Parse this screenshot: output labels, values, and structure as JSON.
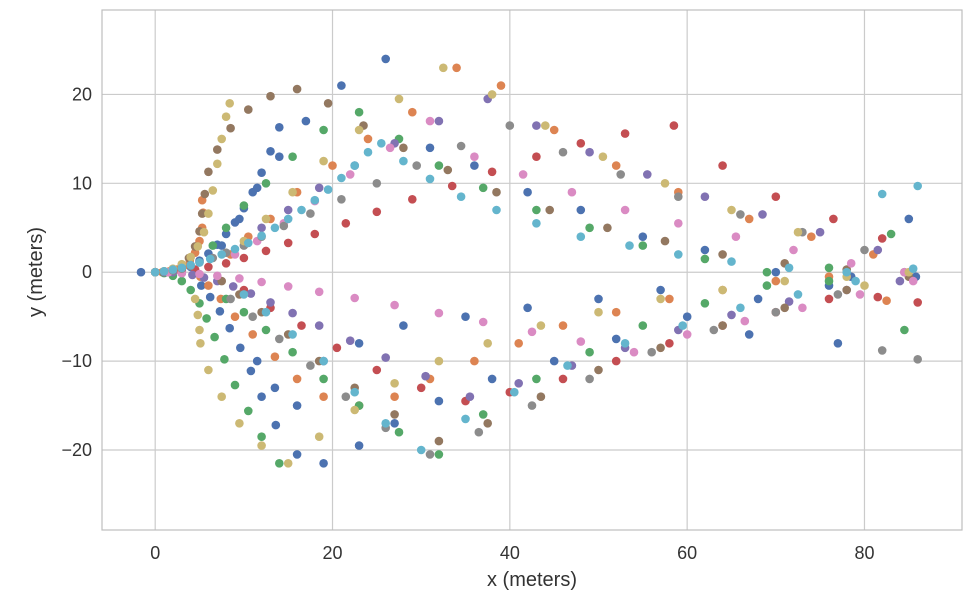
{
  "chart_data": {
    "type": "scatter",
    "title": "",
    "xlabel": "x (meters)",
    "ylabel": "y (meters)",
    "xlim": [
      -6,
      91
    ],
    "ylim": [
      -29,
      29.5
    ],
    "xticks": [
      0,
      20,
      40,
      60,
      80
    ],
    "yticks": [
      -20,
      -10,
      0,
      10,
      20
    ],
    "xtick_labels": [
      "0",
      "20",
      "40",
      "60",
      "80"
    ],
    "ytick_labels": [
      "−20",
      "−10",
      "0",
      "10",
      "20"
    ],
    "grid": true,
    "legend": "none",
    "background": "#ffffff",
    "grid_color": "#cbcbcb",
    "palette": [
      "#4c72b0",
      "#dd8452",
      "#55a868",
      "#c44e52",
      "#8172b2",
      "#937860",
      "#da8bc3",
      "#8c8c8c",
      "#ccb974",
      "#64b5cd"
    ],
    "series": [
      {
        "color": "#4c72b0",
        "x": [
          -1.6,
          0,
          1,
          2,
          3,
          4,
          5,
          6,
          7,
          8,
          9,
          10,
          11,
          12,
          13,
          14,
          5.2,
          6.2,
          7.3,
          8.4,
          9.6,
          10.8,
          12,
          13.6,
          16,
          19,
          23,
          27,
          32,
          38,
          45,
          52,
          60,
          68,
          76,
          85.8,
          7.5,
          9.5,
          11.5,
          14,
          17,
          21,
          26,
          31,
          36,
          42,
          48,
          55,
          62,
          70,
          78.5,
          11.5,
          13.5,
          16,
          19,
          23,
          28,
          35,
          42,
          50,
          57,
          67,
          77,
          85
        ],
        "y": [
          0,
          0,
          0,
          0.1,
          0.2,
          0.6,
          1.3,
          2.1,
          3.1,
          4.3,
          5.6,
          7.2,
          9,
          11.2,
          13.6,
          16.3,
          -1.5,
          -2.8,
          -4.4,
          -6.3,
          -8.5,
          -11.1,
          -14,
          -17.2,
          -20.5,
          -21.5,
          -19.5,
          -17,
          -14.5,
          -12,
          -10,
          -7.5,
          -5,
          -3,
          -1.5,
          -0.5,
          3,
          6,
          9.5,
          13,
          17,
          21,
          24,
          14,
          12,
          9,
          7,
          4,
          2.5,
          0,
          -0.5,
          -10,
          -13,
          -15,
          -10,
          -8,
          -6,
          -5,
          -4,
          -3,
          -2,
          -7,
          -8,
          6
        ]
      },
      {
        "color": "#dd8452",
        "x": [
          0,
          0.8,
          1.6,
          2.4,
          3.2,
          3.9,
          4.5,
          5,
          5.3,
          5.4,
          5.3,
          5.1,
          6,
          7.4,
          9,
          11,
          13.5,
          16,
          19,
          23,
          27,
          31,
          36,
          41,
          46,
          52,
          58,
          64,
          70,
          76,
          82.5,
          8.5,
          10.5,
          13,
          16,
          20,
          24,
          29,
          34,
          39,
          45,
          52,
          59,
          67,
          74,
          81
        ],
        "y": [
          0,
          0,
          0.1,
          0.3,
          0.7,
          1.3,
          2.2,
          3.5,
          5,
          6.7,
          8.1,
          -0.5,
          -1.5,
          -3,
          -5,
          -7,
          -9.5,
          -12,
          -14,
          -15,
          -14,
          -12,
          -10,
          -8,
          -6,
          -4.5,
          -3,
          -2,
          -1,
          -0.5,
          -3.2,
          2,
          4,
          6,
          9,
          12,
          15,
          18,
          23,
          21,
          16,
          12,
          9,
          6,
          4,
          2
        ]
      },
      {
        "color": "#55a868",
        "x": [
          0,
          1,
          2,
          3,
          4,
          5,
          5.8,
          6.7,
          7.8,
          9,
          10.5,
          12,
          14,
          6.5,
          8,
          10,
          12.5,
          15.5,
          19,
          23,
          27.5,
          32,
          37,
          43,
          49,
          55,
          62,
          69,
          76,
          84.5,
          8,
          10,
          12.5,
          15.5,
          19,
          23,
          27.5,
          32,
          37,
          43,
          49,
          55,
          62,
          69,
          76,
          83
        ],
        "y": [
          0,
          -0.1,
          -0.4,
          -1,
          -2,
          -3.5,
          -5.2,
          -7.3,
          -9.8,
          -12.7,
          -15.6,
          -18.5,
          -21.5,
          3,
          5,
          7.5,
          10,
          13,
          16,
          18,
          15,
          12,
          9.5,
          7,
          5,
          3,
          1.5,
          0,
          -1,
          -6.5,
          -3,
          -4.5,
          -6.5,
          -9,
          -12,
          -15,
          -18,
          -20.5,
          -16,
          -12,
          -9,
          -6,
          -3.5,
          -1.5,
          0.5,
          4.3
        ]
      },
      {
        "color": "#c44e52",
        "x": [
          0,
          1.5,
          3,
          4.5,
          6,
          8,
          10,
          12.5,
          15,
          18,
          21.5,
          25,
          29,
          33.5,
          38,
          43,
          48,
          53,
          58.5,
          64,
          70,
          76.5,
          82,
          86,
          10,
          13,
          16.5,
          20.5,
          25,
          30,
          35,
          40,
          46,
          52,
          58,
          64,
          70,
          76,
          81.5
        ],
        "y": [
          0,
          0,
          0.1,
          0.3,
          0.6,
          1,
          1.6,
          2.4,
          3.3,
          4.3,
          5.5,
          6.8,
          8.2,
          9.7,
          11.3,
          13,
          14.5,
          15.6,
          16.5,
          12,
          8.5,
          6,
          3.8,
          -3.4,
          -2,
          -4,
          -6,
          -8.5,
          -11,
          -13,
          -14.5,
          -13.5,
          -12,
          -10,
          -8,
          -6,
          -4.5,
          -3,
          -2.8
        ]
      },
      {
        "color": "#8172b2",
        "x": [
          0,
          1,
          2,
          3,
          4.2,
          5.5,
          7,
          8.8,
          10.8,
          13,
          15.5,
          18.5,
          22,
          26,
          30.5,
          35.5,
          41,
          47,
          53,
          59,
          65,
          71.5,
          78,
          84,
          12,
          15,
          18.5,
          22.5,
          27,
          32,
          37.5,
          43,
          49,
          55.5,
          62,
          68.5,
          75,
          81.5
        ],
        "y": [
          0,
          0,
          0,
          -0.1,
          -0.3,
          -0.6,
          -1,
          -1.6,
          -2.4,
          -3.4,
          -4.6,
          -6,
          -7.7,
          -9.6,
          -11.7,
          -14,
          -12.5,
          -10.5,
          -8.5,
          -6.5,
          -4.8,
          -3.3,
          -2,
          -1,
          5,
          7,
          9.5,
          12,
          14.5,
          17,
          19.5,
          16.5,
          13.5,
          11,
          8.5,
          6.5,
          4.5,
          2.5
        ]
      },
      {
        "color": "#937860",
        "x": [
          0,
          1,
          2,
          3,
          3.8,
          4.5,
          5,
          5.3,
          5.6,
          6,
          7,
          8.5,
          10.5,
          13,
          16,
          19.5,
          23.5,
          28,
          33,
          38.5,
          44.5,
          51,
          57.5,
          64,
          71,
          78,
          84.5,
          7.5,
          9.5,
          12,
          15,
          18.5,
          22.5,
          27,
          32,
          37.5,
          43.5,
          50,
          57,
          64,
          71,
          78,
          85
        ],
        "y": [
          0,
          0.1,
          0.3,
          0.8,
          1.6,
          2.9,
          4.6,
          6.6,
          8.8,
          11.3,
          13.8,
          16.2,
          18.3,
          19.8,
          20.6,
          19,
          16.5,
          14,
          11.5,
          9,
          7,
          5,
          3.5,
          2,
          1,
          0.3,
          0,
          -1,
          -2.5,
          -4.5,
          -7,
          -10,
          -13,
          -16,
          -19,
          -17,
          -14,
          -11,
          -8.5,
          -6,
          -4,
          -2,
          -0.5
        ]
      },
      {
        "color": "#da8bc3",
        "x": [
          0,
          1.5,
          3,
          5,
          7,
          9.5,
          12,
          15,
          18.5,
          22.5,
          27,
          32,
          37,
          42.5,
          48,
          54,
          60,
          66.5,
          73,
          79.5,
          85.5,
          9,
          11.5,
          14.5,
          18,
          22,
          26.5,
          31,
          36,
          41.5,
          47,
          53,
          59,
          65.5,
          72,
          78.5,
          84.5
        ],
        "y": [
          0,
          0,
          -0.1,
          -0.2,
          -0.4,
          -0.7,
          -1.1,
          -1.6,
          -2.2,
          -2.9,
          -3.7,
          -4.6,
          -5.6,
          -6.7,
          -7.8,
          -9,
          -7,
          -5.5,
          -4,
          -2.5,
          -1,
          2,
          3.5,
          5.5,
          8,
          11,
          14,
          17,
          13,
          11,
          9,
          7,
          5.5,
          4,
          2.5,
          1,
          0
        ]
      },
      {
        "color": "#8c8c8c",
        "x": [
          0,
          1,
          2,
          3,
          4,
          5,
          6.5,
          8,
          10,
          12,
          14.5,
          17.5,
          21,
          25,
          29.5,
          34.5,
          40,
          46,
          52.5,
          59,
          66,
          73,
          80,
          86,
          8.5,
          11,
          14,
          17.5,
          21.5,
          26,
          31,
          36.5,
          42.5,
          49,
          56,
          63,
          70,
          77,
          82
        ],
        "y": [
          0,
          0.1,
          0.2,
          0.4,
          0.7,
          1.1,
          1.6,
          2.2,
          3,
          4,
          5.2,
          6.6,
          8.2,
          10,
          12,
          14.2,
          16.5,
          13.5,
          11,
          8.5,
          6.5,
          4.5,
          2.5,
          -9.8,
          -3,
          -5,
          -7.5,
          -10.5,
          -14,
          -17.5,
          -20.5,
          -18,
          -15,
          -12,
          -9,
          -6.5,
          -4.5,
          -2.5,
          -8.8
        ]
      },
      {
        "color": "#ccb974",
        "x": [
          0,
          1,
          2,
          3,
          4,
          4.8,
          5.5,
          6,
          6.5,
          7,
          7.5,
          8,
          8.4,
          4.5,
          4.8,
          5,
          5.1,
          6,
          7.5,
          9.5,
          12,
          15,
          18.5,
          22.5,
          27,
          32,
          37.5,
          43.5,
          50,
          57,
          64,
          71,
          78,
          85,
          10,
          12.5,
          15.5,
          19,
          23,
          27.5,
          32.5,
          38,
          44,
          50.5,
          57.5,
          65,
          72.5,
          80
        ],
        "y": [
          0,
          0.1,
          0.4,
          0.9,
          1.7,
          2.9,
          4.5,
          6.6,
          9.2,
          12.2,
          15,
          17.5,
          19,
          -3,
          -4.8,
          -6.5,
          -8,
          -11,
          -14,
          -17,
          -19.5,
          -21.5,
          -18.5,
          -15.5,
          -12.5,
          -10,
          -8,
          -6,
          -4.5,
          -3,
          -2,
          -1,
          -0.5,
          0,
          3.5,
          6,
          9,
          12.5,
          16,
          19.5,
          23,
          20,
          16.5,
          13,
          10,
          7,
          4.5,
          -1.5
        ]
      },
      {
        "color": "#64b5cd",
        "x": [
          0,
          1,
          2,
          3,
          4,
          5,
          6.2,
          7.5,
          9,
          10.5,
          12,
          13.5,
          15,
          16.5,
          18,
          19.5,
          21,
          22.5,
          24,
          25.5,
          28,
          31,
          34.5,
          38.5,
          43,
          48,
          53.5,
          59,
          65,
          71.5,
          78,
          82,
          85.5,
          86,
          10,
          12.5,
          15.5,
          19,
          22.5,
          26,
          30,
          35,
          40.5,
          46.5,
          53,
          59.5,
          66,
          72.5,
          79
        ],
        "y": [
          0,
          0.1,
          0.3,
          0.5,
          0.8,
          1.1,
          1.5,
          2,
          2.6,
          3.3,
          4.1,
          5,
          6,
          7,
          8.1,
          9.3,
          10.6,
          12,
          13.5,
          14.5,
          12.5,
          10.5,
          8.5,
          7,
          5.5,
          4,
          3,
          2,
          1.2,
          0.5,
          0,
          8.8,
          0.4,
          9.7,
          -2.5,
          -4.5,
          -7,
          -10,
          -13.5,
          -17,
          -20,
          -16.5,
          -13.5,
          -10.5,
          -8,
          -6,
          -4,
          -2.5,
          -1
        ]
      }
    ]
  }
}
